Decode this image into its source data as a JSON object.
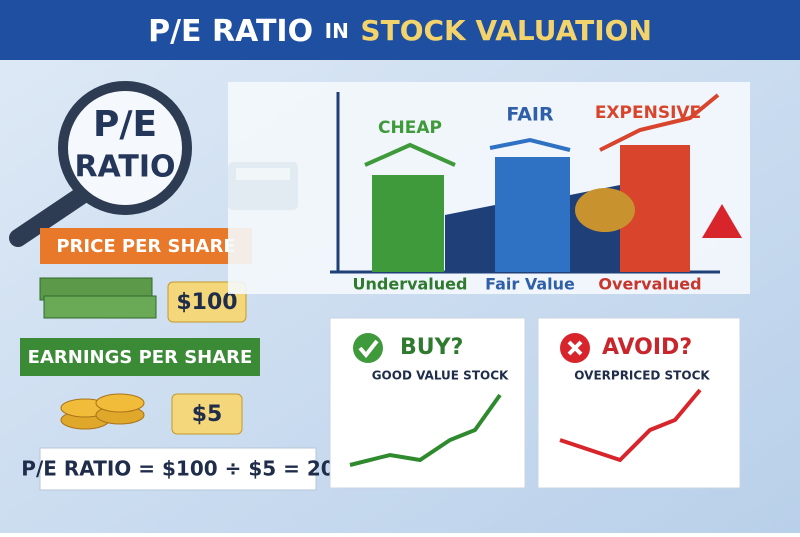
{
  "header": {
    "title_part1": "P/E RATIO",
    "title_part2": "IN",
    "title_part3": "STOCK VALUATION"
  },
  "magnifier": {
    "line1": "P/E",
    "line2": "RATIO"
  },
  "price": {
    "label": "PRICE PER SHARE",
    "tag": "$100"
  },
  "earnings": {
    "label": "EARNINGS PER SHARE",
    "tag": "$5"
  },
  "formula": "P/E RATIO = $100 ÷ $5 = 20",
  "valuation_chart": {
    "top_labels": [
      "CHEAP",
      "FAIR",
      "EXPENSIVE"
    ],
    "bottom_labels": [
      "Undervalued",
      "Fair Value",
      "Overvalued"
    ]
  },
  "buy_card": {
    "title": "BUY?",
    "subtitle": "GOOD VALUE STOCK"
  },
  "avoid_card": {
    "title": "AVOID?",
    "subtitle": "OVERPRICED STOCK"
  }
}
